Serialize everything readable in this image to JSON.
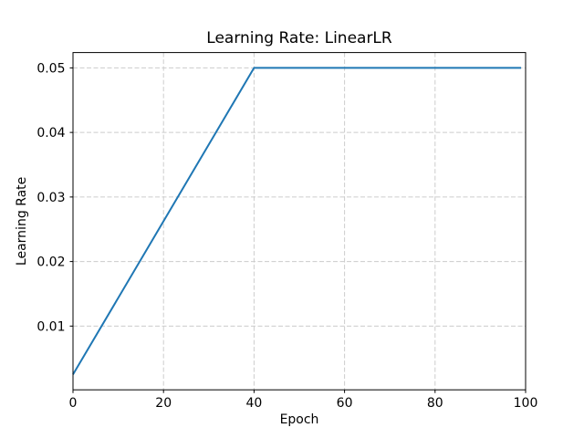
{
  "chart_data": {
    "type": "line",
    "title": "Learning Rate: LinearLR",
    "xlabel": "Epoch",
    "ylabel": "Learning Rate",
    "xlim": [
      0,
      100
    ],
    "ylim": [
      0.000125,
      0.052375
    ],
    "xticks": [
      0,
      20,
      40,
      60,
      80,
      100
    ],
    "yticks": [
      0.01,
      0.02,
      0.03,
      0.04,
      0.05
    ],
    "ytick_labels": [
      "0.01",
      "0.02",
      "0.03",
      "0.04",
      "0.05"
    ],
    "grid": true,
    "grid_linestyle": "dashed",
    "legend": false,
    "colors": {
      "line": "#1f77b4",
      "grid": "#cccccc",
      "spine": "#000000",
      "background": "#ffffff"
    },
    "series": [
      {
        "name": "learning_rate",
        "points": [
          [
            0,
            0.0025
          ],
          [
            40,
            0.05
          ],
          [
            99,
            0.05
          ]
        ],
        "note": "linear warmup from 0.0025 at epoch 0 to 0.05 at epoch 40, then constant 0.05 through epoch 99"
      }
    ]
  }
}
